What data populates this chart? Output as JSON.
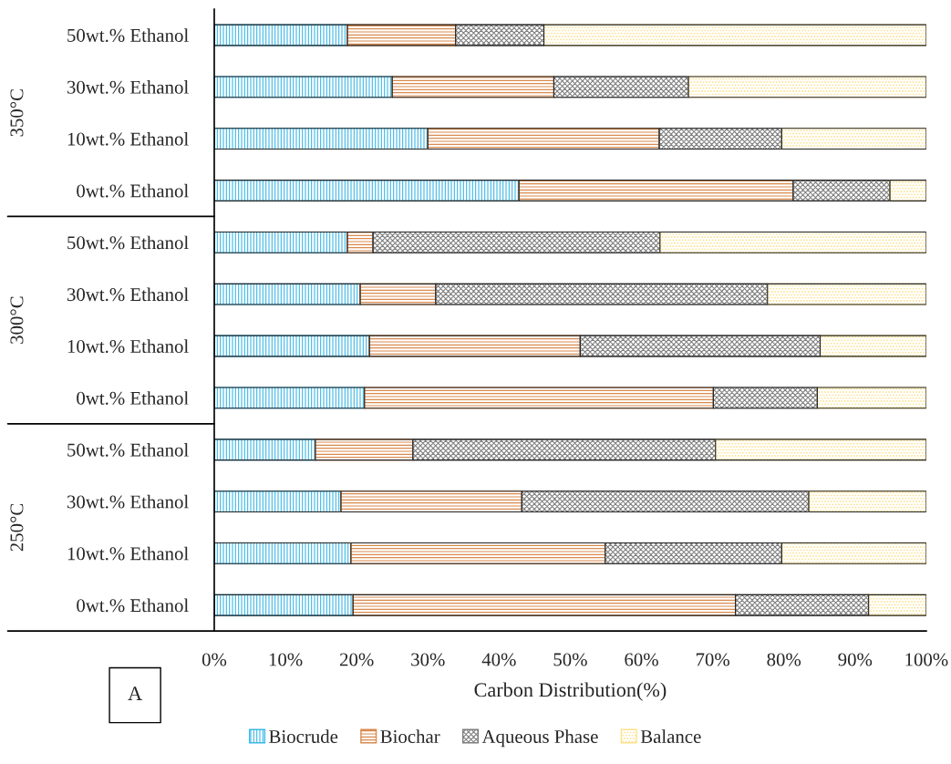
{
  "chart_data": {
    "type": "bar",
    "orientation": "horizontal",
    "stacked": true,
    "categories": [
      "50wt.% Ethanol",
      "30wt.% Ethanol",
      "10wt.% Ethanol",
      "0wt.% Ethanol",
      "50wt.% Ethanol",
      "30wt.% Ethanol",
      "10wt.% Ethanol",
      "0wt.% Ethanol",
      "50wt.% Ethanol",
      "30wt.% Ethanol",
      "10wt.% Ethanol",
      "0wt.% Ethanol"
    ],
    "series": [
      {
        "name": "Biocrude",
        "color": "#3bb8e8",
        "values": [
          18.7,
          25.0,
          30.0,
          42.8,
          18.7,
          20.5,
          21.8,
          21.1,
          14.2,
          17.8,
          19.2,
          19.5
        ]
      },
      {
        "name": "Biochar",
        "color": "#d98a4e",
        "values": [
          15.2,
          22.7,
          32.5,
          38.5,
          3.6,
          10.6,
          29.6,
          49.0,
          13.7,
          25.4,
          35.7,
          53.7
        ]
      },
      {
        "name": "Aqueous Phase",
        "color": "#7f7f7f",
        "values": [
          12.4,
          18.9,
          17.2,
          13.6,
          40.3,
          46.6,
          33.7,
          14.6,
          42.5,
          40.3,
          24.8,
          18.7
        ]
      },
      {
        "name": "Balance",
        "color": "#fde28c",
        "values": [
          53.7,
          33.4,
          20.3,
          5.1,
          37.4,
          22.3,
          14.9,
          15.3,
          29.6,
          16.5,
          20.3,
          8.1
        ]
      }
    ],
    "xlim": [
      0,
      100
    ],
    "xticks": [
      {
        "value": 0,
        "label": "0%"
      },
      {
        "value": 10,
        "label": "10%"
      },
      {
        "value": 20,
        "label": "20%"
      },
      {
        "value": 30,
        "label": "30%"
      },
      {
        "value": 40,
        "label": "40%"
      },
      {
        "value": 50,
        "label": "50%"
      },
      {
        "value": 60,
        "label": "60%"
      },
      {
        "value": 70,
        "label": "70%"
      },
      {
        "value": 80,
        "label": "80%"
      },
      {
        "value": 90,
        "label": "90%"
      },
      {
        "value": 100,
        "label": "100%"
      }
    ],
    "xlabel": "Carbon Distribution(%)",
    "annotations": [
      "350°C",
      "300°C",
      "250°C",
      "A"
    ],
    "legend": "bottom",
    "grid": false
  }
}
